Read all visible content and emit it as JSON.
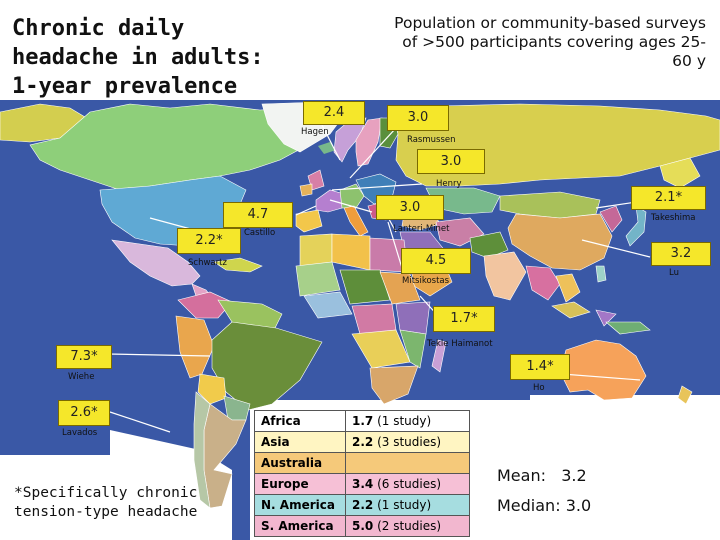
{
  "title": "Chronic daily headache in adults: 1-year prevalence",
  "subtitle": "Population or community-based surveys of >500 participants covering ages 25-60 y",
  "colors": {
    "label_bg": "#f5e72a",
    "ocean": "#3a58a6",
    "arrow": "#ffffff"
  },
  "studies": [
    {
      "value": "2.4",
      "author": "Hagen"
    },
    {
      "value": "3.0",
      "author": "Rasmussen"
    },
    {
      "value": "3.0",
      "author": "Henry"
    },
    {
      "value": "2.1*",
      "author": "Takeshima"
    },
    {
      "value": "4.7",
      "author": "Castillo"
    },
    {
      "value": "3.0",
      "author": "Lanteri-Minet"
    },
    {
      "value": "2.2*",
      "author": "Schwartz"
    },
    {
      "value": "3.2",
      "author": "Lu"
    },
    {
      "value": "4.5",
      "author": "Mitsikostas"
    },
    {
      "value": "1.7*",
      "author": "Tekle Haimanot"
    },
    {
      "value": "7.3*",
      "author": "Wiehe"
    },
    {
      "value": "1.4*",
      "author": "Ho"
    },
    {
      "value": "2.6*",
      "author": "Lavados"
    }
  ],
  "footnote": "*Specifically chronic tension-type headache",
  "regions": [
    {
      "name": "Africa",
      "prevalence": "1.7",
      "count": "(1 study)",
      "color": "#ffffff"
    },
    {
      "name": "Asia",
      "prevalence": "2.2",
      "count": "(3 studies)",
      "color": "#fff5c2"
    },
    {
      "name": "Australia",
      "prevalence": "",
      "count": "",
      "color": "#f5c97a"
    },
    {
      "name": "Europe",
      "prevalence": "3.4",
      "count": "(6 studies)",
      "color": "#f6c0d6"
    },
    {
      "name": "N. America",
      "prevalence": "2.2",
      "count": "(1 study)",
      "color": "#a6dde0"
    },
    {
      "name": "S. America",
      "prevalence": "5.0",
      "count": "(2 studies)",
      "color": "#f2b7cf"
    }
  ],
  "summary": {
    "mean_label": "Mean:",
    "mean_value": "3.2",
    "median_label": "Median:",
    "median_value": "3.0"
  }
}
